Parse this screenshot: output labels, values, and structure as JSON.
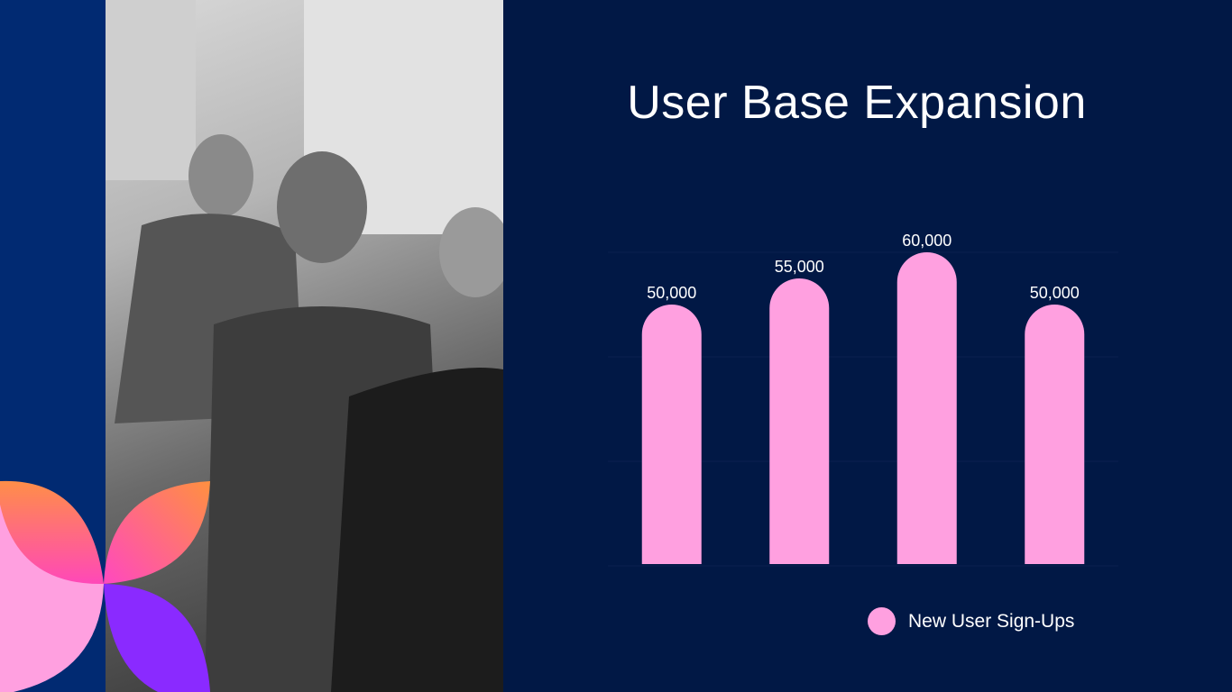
{
  "slide": {
    "title": "User Base Expansion"
  },
  "colors": {
    "background": "#011845",
    "bar": "#ffa0e0",
    "strip": "#012a72"
  },
  "chart_data": {
    "type": "bar",
    "title": "User Base Expansion",
    "categories": [
      "",
      "",
      "",
      ""
    ],
    "series": [
      {
        "name": "New User Sign-Ups",
        "values": [
          50000,
          55000,
          60000,
          50000
        ]
      }
    ],
    "data_labels": [
      "50,000",
      "55,000",
      "60,000",
      "50,000"
    ],
    "xlabel": "",
    "ylabel": "",
    "ylim": [
      0,
      70000
    ],
    "grid": true,
    "legend": "bottom-right"
  }
}
